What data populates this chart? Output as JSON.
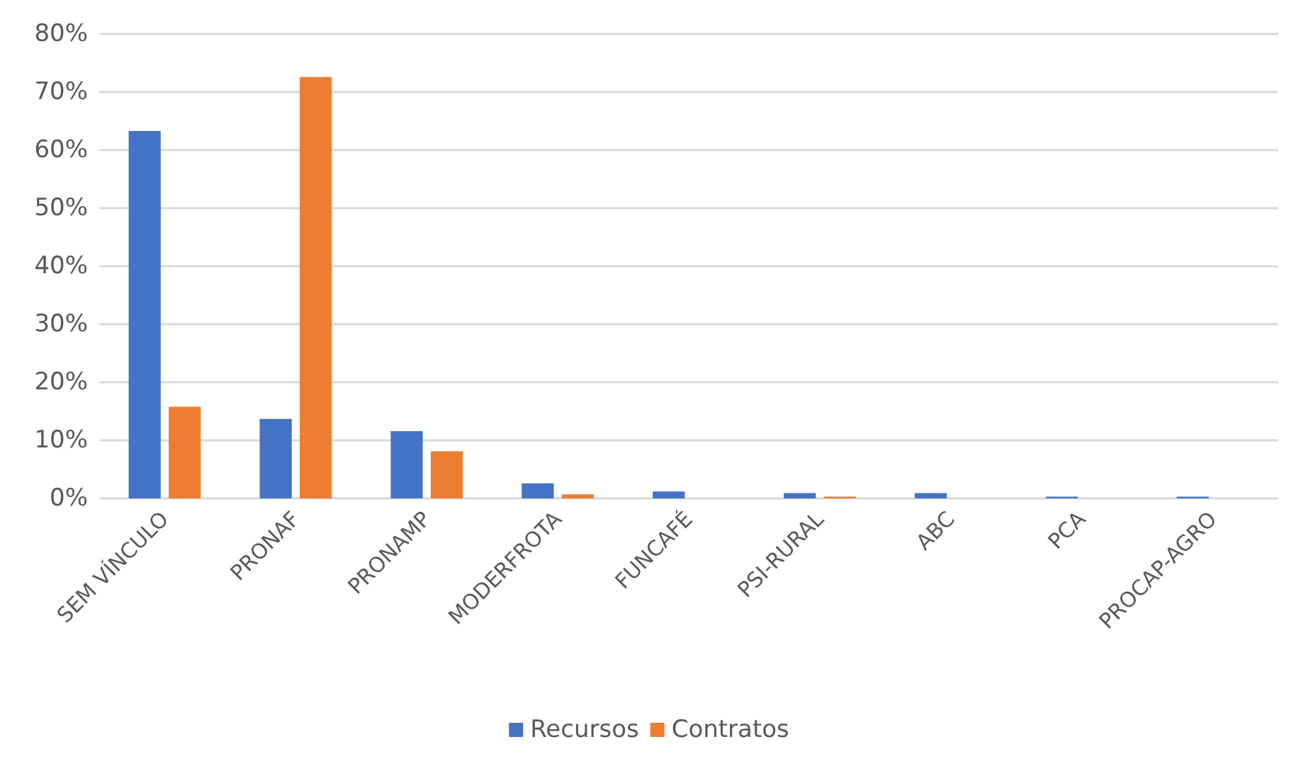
{
  "chart_data": {
    "type": "bar",
    "categories": [
      "SEM VÍNCULO",
      "PRONAF",
      "PRONAMP",
      "MODERFROTA",
      "FUNCAFÉ",
      "PSI-RURAL",
      "ABC",
      "PCA",
      "PROCAP-AGRO"
    ],
    "series": [
      {
        "name": "Recursos",
        "color": "#4472c4",
        "values": [
          63.3,
          13.7,
          11.6,
          2.6,
          1.2,
          0.9,
          0.9,
          0.3,
          0.3
        ]
      },
      {
        "name": "Contratos",
        "color": "#ed7d31",
        "values": [
          15.8,
          72.6,
          8.1,
          0.7,
          0,
          0.3,
          0,
          0,
          0
        ]
      }
    ],
    "ylim": [
      0,
      80
    ],
    "yticks": [
      {
        "value": 0,
        "label": "0%"
      },
      {
        "value": 10,
        "label": "10%"
      },
      {
        "value": 20,
        "label": "20%"
      },
      {
        "value": 30,
        "label": "30%"
      },
      {
        "value": 40,
        "label": "40%"
      },
      {
        "value": 50,
        "label": "50%"
      },
      {
        "value": 60,
        "label": "60%"
      },
      {
        "value": 70,
        "label": "70%"
      },
      {
        "value": 80,
        "label": "80%"
      }
    ],
    "grid": "y",
    "legend": "bottom"
  }
}
